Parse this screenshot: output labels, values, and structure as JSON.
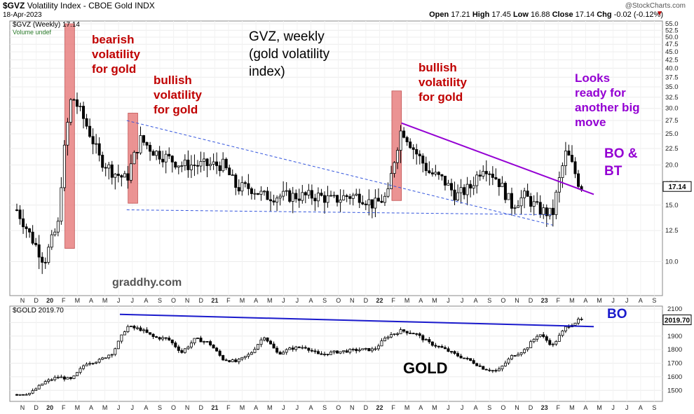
{
  "header": {
    "symbol": "$GVZ",
    "name": "Volatility Index - CBOE Gold",
    "exchange": "INDX",
    "date": "18-Apr-2023",
    "brand": "@StockCharts.com",
    "ohlc": {
      "open_label": "Open",
      "open": "17.21",
      "high_label": "High",
      "high": "17.45",
      "low_label": "Low",
      "low": "16.88",
      "close_label": "Close",
      "close": "17.14",
      "chg_label": "Chg",
      "chg": "-0.02 (-0.12%)"
    }
  },
  "colors": {
    "red_text": "#c00000",
    "purple": "#9400d3",
    "blue_line": "#1a1acc",
    "dashed": "#3355dd",
    "box": "#e88080"
  },
  "chart_data": [
    {
      "type": "candlestick",
      "title": "GVZ, weekly (gold volatility index)",
      "legend": [
        "$GVZ (Weekly) 17.14",
        "Volume undef"
      ],
      "last_value": "17.14",
      "ylim": [
        8,
        55
      ],
      "yscale": "log",
      "y_ticks": [
        "55.0",
        "52.5",
        "50.0",
        "47.5",
        "45.0",
        "42.5",
        "40.0",
        "37.5",
        "35.0",
        "32.5",
        "30.0",
        "27.5",
        "25.0",
        "22.5",
        "20.0",
        "17.5",
        "15.0",
        "12.5",
        "10.0"
      ],
      "x_ticks": [
        "N",
        "D",
        "20",
        "F",
        "M",
        "A",
        "M",
        "J",
        "J",
        "A",
        "S",
        "O",
        "N",
        "D",
        "21",
        "F",
        "M",
        "A",
        "M",
        "J",
        "J",
        "A",
        "S",
        "O",
        "N",
        "D",
        "22",
        "F",
        "M",
        "A",
        "M",
        "J",
        "J",
        "A",
        "S",
        "O",
        "N",
        "D",
        "23",
        "F",
        "M",
        "A",
        "M",
        "J",
        "J",
        "A",
        "S"
      ],
      "approx_close_path": [
        {
          "m": 0,
          "v": 14.5
        },
        {
          "m": 1,
          "v": 12
        },
        {
          "m": 2,
          "v": 10
        },
        {
          "m": 3,
          "v": 13
        },
        {
          "m": 4,
          "v": 33
        },
        {
          "m": 5,
          "v": 27
        },
        {
          "m": 6,
          "v": 21
        },
        {
          "m": 7,
          "v": 19
        },
        {
          "m": 8,
          "v": 18
        },
        {
          "m": 9,
          "v": 24
        },
        {
          "m": 10,
          "v": 22
        },
        {
          "m": 11,
          "v": 21
        },
        {
          "m": 12,
          "v": 20
        },
        {
          "m": 13,
          "v": 20
        },
        {
          "m": 14,
          "v": 20
        },
        {
          "m": 15,
          "v": 20
        },
        {
          "m": 16,
          "v": 17
        },
        {
          "m": 17,
          "v": 17
        },
        {
          "m": 18,
          "v": 16
        },
        {
          "m": 19,
          "v": 16
        },
        {
          "m": 20,
          "v": 16
        },
        {
          "m": 21,
          "v": 16
        },
        {
          "m": 22,
          "v": 16
        },
        {
          "m": 23,
          "v": 15.5
        },
        {
          "m": 24,
          "v": 16
        },
        {
          "m": 25,
          "v": 16
        },
        {
          "m": 26,
          "v": 15
        },
        {
          "m": 27,
          "v": 16
        },
        {
          "m": 28,
          "v": 26
        },
        {
          "m": 29,
          "v": 22
        },
        {
          "m": 30,
          "v": 19
        },
        {
          "m": 31,
          "v": 18
        },
        {
          "m": 32,
          "v": 16
        },
        {
          "m": 33,
          "v": 17
        },
        {
          "m": 34,
          "v": 20
        },
        {
          "m": 35,
          "v": 18
        },
        {
          "m": 36,
          "v": 15
        },
        {
          "m": 37,
          "v": 16
        },
        {
          "m": 38,
          "v": 14.5
        },
        {
          "m": 39,
          "v": 14
        },
        {
          "m": 40,
          "v": 22
        },
        {
          "m": 41,
          "v": 17.1
        }
      ],
      "annotations": [
        {
          "text": "bearish volatility for gold",
          "color": "#c00000"
        },
        {
          "text": "bullish volatility for gold",
          "color": "#c00000"
        },
        {
          "text": "bullish volatility for gold",
          "color": "#c00000"
        },
        {
          "text": "Looks ready for another big move",
          "color": "#9400d3"
        },
        {
          "text": "BO & BT",
          "color": "#9400d3"
        },
        {
          "text": "graddhy.com",
          "color": "#555555"
        }
      ],
      "trendlines": [
        {
          "name": "falling-upper-dashed",
          "from": {
            "m": 8,
            "v": 27.5
          },
          "to": {
            "m": 39,
            "v": 13
          }
        },
        {
          "name": "support-dashed",
          "from": {
            "m": 8,
            "v": 14.5
          },
          "to": {
            "m": 39,
            "v": 14
          }
        },
        {
          "name": "purple-resistance",
          "from": {
            "m": 28,
            "v": 27
          },
          "to": {
            "m": 42,
            "v": 16.2
          }
        }
      ],
      "highlight_zones": [
        {
          "from_m": 3.5,
          "to_m": 4.2,
          "low": 11,
          "high": 55
        },
        {
          "from_m": 8.1,
          "to_m": 8.8,
          "low": 15.2,
          "high": 29
        },
        {
          "from_m": 27.3,
          "to_m": 28.0,
          "low": 15.5,
          "high": 34
        }
      ]
    },
    {
      "type": "candlestick",
      "title": "GOLD",
      "legend": [
        "$GOLD 2019.70"
      ],
      "last_value": "2019.70",
      "ylim": [
        1450,
        2100
      ],
      "y_ticks": [
        "2100",
        "2000",
        "1900",
        "1800",
        "1700",
        "1600",
        "1500"
      ],
      "x_ticks": [
        "N",
        "D",
        "20",
        "F",
        "M",
        "A",
        "M",
        "J",
        "J",
        "A",
        "S",
        "O",
        "N",
        "D",
        "21",
        "F",
        "M",
        "A",
        "M",
        "J",
        "J",
        "A",
        "S",
        "O",
        "N",
        "D",
        "22",
        "F",
        "M",
        "A",
        "M",
        "J",
        "J",
        "A",
        "S",
        "O",
        "N",
        "D",
        "23",
        "F",
        "M",
        "A",
        "M",
        "J",
        "J",
        "A",
        "S"
      ],
      "approx_close_path": [
        {
          "m": 0,
          "v": 1470
        },
        {
          "m": 1,
          "v": 1480
        },
        {
          "m": 2,
          "v": 1560
        },
        {
          "m": 3,
          "v": 1600
        },
        {
          "m": 4,
          "v": 1580
        },
        {
          "m": 5,
          "v": 1700
        },
        {
          "m": 6,
          "v": 1720
        },
        {
          "m": 7,
          "v": 1780
        },
        {
          "m": 8,
          "v": 1970
        },
        {
          "m": 9,
          "v": 1950
        },
        {
          "m": 10,
          "v": 1890
        },
        {
          "m": 11,
          "v": 1880
        },
        {
          "m": 12,
          "v": 1780
        },
        {
          "m": 13,
          "v": 1880
        },
        {
          "m": 14,
          "v": 1850
        },
        {
          "m": 15,
          "v": 1730
        },
        {
          "m": 16,
          "v": 1710
        },
        {
          "m": 17,
          "v": 1770
        },
        {
          "m": 18,
          "v": 1900
        },
        {
          "m": 19,
          "v": 1770
        },
        {
          "m": 20,
          "v": 1810
        },
        {
          "m": 21,
          "v": 1820
        },
        {
          "m": 22,
          "v": 1760
        },
        {
          "m": 23,
          "v": 1780
        },
        {
          "m": 24,
          "v": 1790
        },
        {
          "m": 25,
          "v": 1800
        },
        {
          "m": 26,
          "v": 1800
        },
        {
          "m": 27,
          "v": 1900
        },
        {
          "m": 28,
          "v": 1940
        },
        {
          "m": 29,
          "v": 1920
        },
        {
          "m": 30,
          "v": 1850
        },
        {
          "m": 31,
          "v": 1810
        },
        {
          "m": 32,
          "v": 1760
        },
        {
          "m": 33,
          "v": 1720
        },
        {
          "m": 34,
          "v": 1660
        },
        {
          "m": 35,
          "v": 1640
        },
        {
          "m": 36,
          "v": 1750
        },
        {
          "m": 37,
          "v": 1800
        },
        {
          "m": 38,
          "v": 1920
        },
        {
          "m": 39,
          "v": 1830
        },
        {
          "m": 40,
          "v": 1970
        },
        {
          "m": 41,
          "v": 2019.7
        }
      ],
      "annotations": [
        {
          "text": "BO",
          "color": "#1a1acc"
        },
        {
          "text": "GOLD",
          "color": "#000000"
        }
      ],
      "trendlines": [
        {
          "name": "blue-resistance",
          "from": {
            "m": 7.5,
            "v": 2060
          },
          "to": {
            "m": 42,
            "v": 1970
          }
        }
      ]
    }
  ]
}
